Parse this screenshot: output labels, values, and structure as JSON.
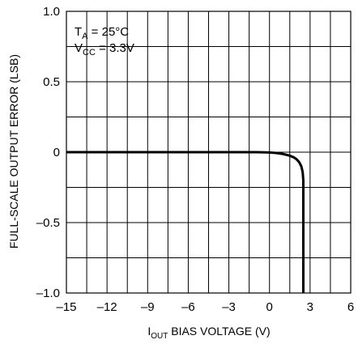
{
  "chart_data": {
    "type": "line",
    "xlabel": {
      "main": "I",
      "sub": "OUT",
      "rest": " BIAS VOLTAGE (V)"
    },
    "ylabel": "FULL-SCALE OUTPUT ERROR (LSB)",
    "xlim": [
      -15,
      6
    ],
    "ylim": [
      -1.0,
      1.0
    ],
    "x_ticks": [
      -15,
      -12,
      -9,
      -6,
      -3,
      0,
      3,
      6
    ],
    "x_tick_labels": [
      "–15",
      "–12",
      "–9",
      "–6",
      "–3",
      "0",
      "3",
      "6"
    ],
    "x_grid": [
      -15,
      -13.5,
      -12,
      -10.5,
      -9,
      -7.5,
      -6,
      -4.5,
      -3,
      -1.5,
      0,
      1.5,
      3,
      4.5,
      6
    ],
    "y_ticks": [
      1.0,
      0.5,
      0,
      -0.5,
      -1.0
    ],
    "y_tick_labels": [
      "1.0",
      "0.5",
      "0",
      "–0.5",
      "–1.0"
    ],
    "y_grid": [
      -1.0,
      -0.75,
      -0.5,
      -0.25,
      0,
      0.25,
      0.5,
      0.75,
      1.0
    ],
    "grid": true,
    "annotations": [
      {
        "main": "T",
        "sub": "A",
        "rest": " = 25°C"
      },
      {
        "main": "V",
        "sub": "CC",
        "rest": " = 3.3V"
      }
    ],
    "series": [
      {
        "x": [
          -15,
          -5,
          -2,
          -1,
          0,
          0.5,
          1.0,
          1.5,
          1.8,
          2.0,
          2.2,
          2.35,
          2.45,
          2.5,
          2.5
        ],
        "y": [
          0,
          0,
          0,
          0,
          -0.002,
          -0.006,
          -0.013,
          -0.025,
          -0.037,
          -0.05,
          -0.072,
          -0.1,
          -0.14,
          -0.2,
          -1.0
        ]
      }
    ]
  }
}
